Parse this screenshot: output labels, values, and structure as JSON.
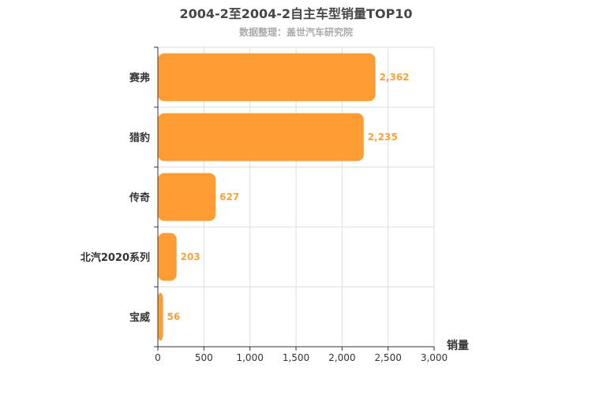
{
  "chart_data": {
    "type": "bar",
    "orientation": "horizontal",
    "title": "2004-2至2004-2自主车型销量TOP10",
    "subtitle": "数据整理：盖世汽车研究院",
    "xlabel": "销量",
    "ylabel": "",
    "categories": [
      "赛弗",
      "猎豹",
      "传奇",
      "北汽2020系列",
      "宝威"
    ],
    "values": [
      2362,
      2235,
      627,
      203,
      56
    ],
    "value_labels": [
      "2,362",
      "2,235",
      "627",
      "203",
      "56"
    ],
    "xlim": [
      0,
      3000
    ],
    "xticks": [
      0,
      500,
      1000,
      1500,
      2000,
      2500,
      3000
    ],
    "xtick_labels": [
      "0",
      "500",
      "1,000",
      "1,500",
      "2,000",
      "2,500",
      "3,000"
    ],
    "grid": true,
    "bar_color": "#ff9c33",
    "label_color": "#f3a43b"
  }
}
